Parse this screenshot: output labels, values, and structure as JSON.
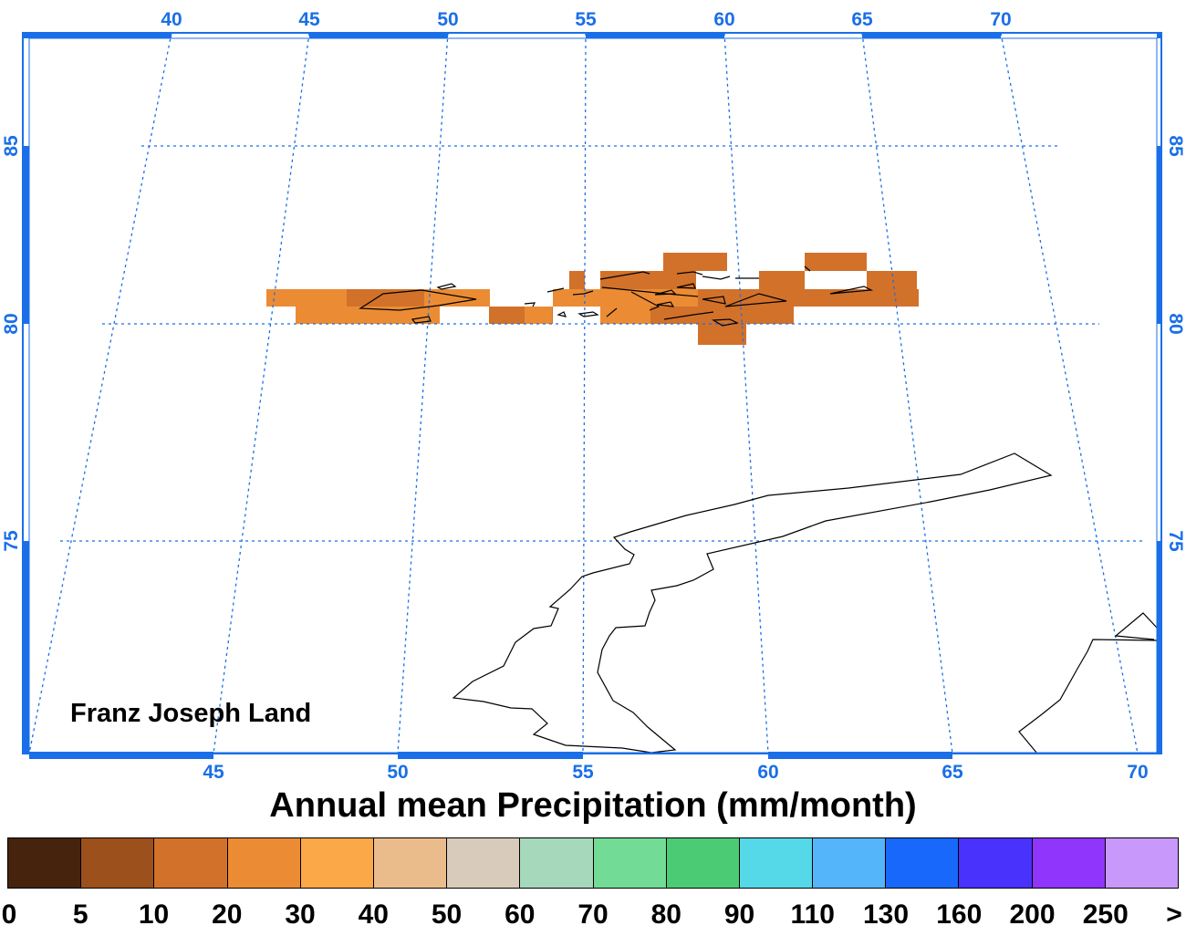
{
  "map": {
    "region_label": "Franz Joseph Land",
    "top_lon_ticks": [
      "40",
      "45",
      "50",
      "55",
      "60",
      "65",
      "70"
    ],
    "bottom_lon_ticks": [
      "45",
      "50",
      "55",
      "60",
      "65",
      "70"
    ],
    "lat_ticks": [
      "85",
      "80",
      "75"
    ],
    "frame_color": "#1a6fe8",
    "coast_color": "#000000"
  },
  "legend": {
    "title": "Annual mean Precipitation (mm/month)",
    "colors": [
      "#45230d",
      "#9c501c",
      "#d2712a",
      "#eb8c34",
      "#fba849",
      "#ebbc8b",
      "#d9cbbb",
      "#a6d8bb",
      "#72db96",
      "#4bcb74",
      "#55d8e8",
      "#55b5fb",
      "#1868fb",
      "#4932fb",
      "#9035fb",
      "#c898fa"
    ],
    "labels": [
      "0",
      "5",
      "10",
      "20",
      "30",
      "40",
      "50",
      "60",
      "70",
      "80",
      "90",
      "110",
      "130",
      "160",
      "200",
      "250",
      ">"
    ]
  }
}
